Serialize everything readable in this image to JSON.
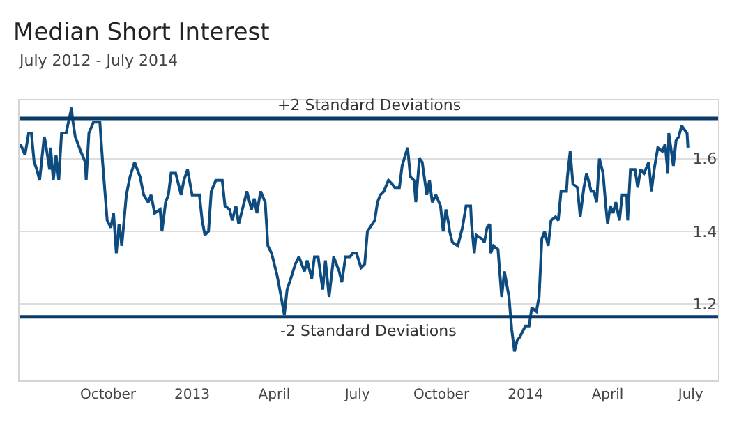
{
  "chart_data": {
    "type": "line",
    "title": "Median Short Interest",
    "subtitle": "July 2012 - July 2014",
    "x": [
      "2012-06-27",
      "2012-07-02",
      "2012-07-06",
      "2012-07-09",
      "2012-07-12",
      "2012-07-15",
      "2012-07-18",
      "2012-07-23",
      "2012-07-24",
      "2012-07-29",
      "2012-07-30",
      "2012-08-02",
      "2012-08-05",
      "2012-08-08",
      "2012-08-11",
      "2012-08-16",
      "2012-08-22",
      "2012-08-23",
      "2012-08-26",
      "2012-09-01",
      "2012-09-06",
      "2012-09-07",
      "2012-09-10",
      "2012-09-15",
      "2012-09-22",
      "2012-09-25",
      "2012-09-30",
      "2012-10-04",
      "2012-10-07",
      "2012-10-10",
      "2012-10-13",
      "2012-10-16",
      "2012-10-21",
      "2012-10-25",
      "2012-10-30",
      "2012-11-05",
      "2012-11-09",
      "2012-11-14",
      "2012-11-17",
      "2012-11-21",
      "2012-11-27",
      "2012-11-29",
      "2012-12-03",
      "2012-12-06",
      "2012-12-09",
      "2012-12-14",
      "2012-12-20",
      "2012-12-23",
      "2012-12-27",
      "2013-01-01",
      "2013-01-09",
      "2013-01-12",
      "2013-01-15",
      "2013-01-19",
      "2013-01-22",
      "2013-01-27",
      "2013-02-03",
      "2013-02-06",
      "2013-02-11",
      "2013-02-14",
      "2013-02-18",
      "2013-02-21",
      "2013-02-26",
      "2013-03-02",
      "2013-03-07",
      "2013-03-10",
      "2013-03-13",
      "2013-03-17",
      "2013-03-22",
      "2013-03-25",
      "2013-03-29",
      "2013-04-04",
      "2013-04-07",
      "2013-04-12",
      "2013-04-15",
      "2013-04-19",
      "2013-04-24",
      "2013-04-28",
      "2013-05-04",
      "2013-05-07",
      "2013-05-12",
      "2013-05-15",
      "2013-05-19",
      "2013-05-24",
      "2013-05-27",
      "2013-05-31",
      "2013-06-05",
      "2013-06-11",
      "2013-06-14",
      "2013-06-18",
      "2013-06-23",
      "2013-06-26",
      "2013-06-30",
      "2013-07-05",
      "2013-07-09",
      "2013-07-12",
      "2013-07-20",
      "2013-07-23",
      "2013-07-26",
      "2013-07-30",
      "2013-08-04",
      "2013-08-08",
      "2013-08-11",
      "2013-08-16",
      "2013-08-19",
      "2013-08-25",
      "2013-08-28",
      "2013-09-01",
      "2013-09-03",
      "2013-09-07",
      "2013-09-10",
      "2013-09-15",
      "2013-09-18",
      "2013-09-21",
      "2013-09-25",
      "2013-09-30",
      "2013-10-03",
      "2013-10-06",
      "2013-10-09",
      "2013-10-10",
      "2013-10-13",
      "2013-10-19",
      "2013-10-24",
      "2013-10-28",
      "2013-11-02",
      "2013-11-03",
      "2013-11-06",
      "2013-11-08",
      "2013-11-14",
      "2013-11-17",
      "2013-11-20",
      "2013-11-23",
      "2013-11-24",
      "2013-11-27",
      "2013-12-02",
      "2013-12-06",
      "2013-12-09",
      "2013-12-14",
      "2013-12-17",
      "2013-12-20",
      "2013-12-23",
      "2013-12-26",
      "2014-01-01",
      "2014-01-05",
      "2014-01-08",
      "2014-01-13",
      "2014-01-16",
      "2014-01-19",
      "2014-01-22",
      "2014-01-26",
      "2014-01-29",
      "2014-02-03",
      "2014-02-06",
      "2014-02-09",
      "2014-02-15",
      "2014-02-16",
      "2014-02-19",
      "2014-02-22",
      "2014-02-27",
      "2014-03-02",
      "2014-03-06",
      "2014-03-09",
      "2014-03-14",
      "2014-03-17",
      "2014-03-20",
      "2014-03-23",
      "2014-03-27",
      "2014-03-30",
      "2014-04-01",
      "2014-04-04",
      "2014-04-07",
      "2014-04-10",
      "2014-04-14",
      "2014-04-17",
      "2014-04-22",
      "2014-04-23",
      "2014-04-26",
      "2014-05-01",
      "2014-05-04",
      "2014-05-07",
      "2014-05-11",
      "2014-05-16",
      "2014-05-19",
      "2014-05-22",
      "2014-05-26",
      "2014-05-31",
      "2014-06-03",
      "2014-06-06",
      "2014-06-07",
      "2014-06-12",
      "2014-06-15",
      "2014-06-18",
      "2014-06-21",
      "2014-06-24",
      "2014-06-27",
      "2014-06-28"
    ],
    "series": [
      {
        "color": "#0e4b7f",
        "values": [
          1.64,
          1.61,
          1.67,
          1.67,
          1.59,
          1.57,
          1.54,
          1.66,
          1.65,
          1.57,
          1.63,
          1.54,
          1.61,
          1.54,
          1.67,
          1.67,
          1.74,
          1.71,
          1.66,
          1.62,
          1.59,
          1.54,
          1.67,
          1.7,
          1.7,
          1.59,
          1.43,
          1.41,
          1.45,
          1.34,
          1.42,
          1.36,
          1.5,
          1.55,
          1.59,
          1.55,
          1.5,
          1.48,
          1.5,
          1.45,
          1.46,
          1.4,
          1.48,
          1.5,
          1.56,
          1.56,
          1.5,
          1.54,
          1.57,
          1.5,
          1.5,
          1.43,
          1.39,
          1.4,
          1.51,
          1.54,
          1.54,
          1.47,
          1.46,
          1.43,
          1.47,
          1.42,
          1.47,
          1.51,
          1.46,
          1.49,
          1.45,
          1.51,
          1.48,
          1.36,
          1.34,
          1.28,
          1.24,
          1.17,
          1.24,
          1.27,
          1.31,
          1.33,
          1.29,
          1.32,
          1.27,
          1.33,
          1.33,
          1.24,
          1.32,
          1.22,
          1.33,
          1.29,
          1.26,
          1.33,
          1.33,
          1.34,
          1.34,
          1.3,
          1.31,
          1.4,
          1.43,
          1.48,
          1.5,
          1.51,
          1.54,
          1.53,
          1.52,
          1.52,
          1.58,
          1.63,
          1.55,
          1.54,
          1.48,
          1.6,
          1.59,
          1.5,
          1.54,
          1.48,
          1.5,
          1.47,
          1.4,
          1.46,
          1.42,
          1.4,
          1.37,
          1.36,
          1.41,
          1.47,
          1.47,
          1.42,
          1.34,
          1.39,
          1.38,
          1.37,
          1.41,
          1.42,
          1.34,
          1.36,
          1.35,
          1.22,
          1.29,
          1.22,
          1.13,
          1.07,
          1.1,
          1.11,
          1.14,
          1.14,
          1.19,
          1.18,
          1.22,
          1.38,
          1.4,
          1.36,
          1.43,
          1.44,
          1.43,
          1.51,
          1.51,
          1.55,
          1.62,
          1.53,
          1.52,
          1.44,
          1.52,
          1.56,
          1.51,
          1.51,
          1.48,
          1.6,
          1.56,
          1.47,
          1.42,
          1.47,
          1.45,
          1.48,
          1.43,
          1.5,
          1.5,
          1.43,
          1.57,
          1.57,
          1.52,
          1.57,
          1.56,
          1.59,
          1.51,
          1.57,
          1.63,
          1.62,
          1.64,
          1.56,
          1.67,
          1.58,
          1.65,
          1.66,
          1.69,
          1.68,
          1.67,
          1.63
        ]
      }
    ],
    "xlim": [
      "2012-06-26",
      "2014-07-31"
    ],
    "xticks": [
      {
        "value": "2012-10-01",
        "label": "October"
      },
      {
        "value": "2013-01-01",
        "label": "2013"
      },
      {
        "value": "2013-04-01",
        "label": "April"
      },
      {
        "value": "2013-07-01",
        "label": "July"
      },
      {
        "value": "2013-10-01",
        "label": "October"
      },
      {
        "value": "2014-01-01",
        "label": "2014"
      },
      {
        "value": "2014-04-01",
        "label": "April"
      },
      {
        "value": "2014-07-01",
        "label": "July"
      }
    ],
    "ylim": [
      0.99,
      1.76
    ],
    "yticks": [
      1.2,
      1.4,
      1.6
    ],
    "grid": "y",
    "marker": "none",
    "line_style": "solid",
    "ref_lines": [
      {
        "axis": "y",
        "value": 1.71,
        "label": "+2 Standard Deviations",
        "color": "#0a3a66"
      },
      {
        "axis": "y",
        "value": 1.165,
        "label": "-2 Standard Deviations",
        "color": "#0a3a66"
      }
    ]
  }
}
